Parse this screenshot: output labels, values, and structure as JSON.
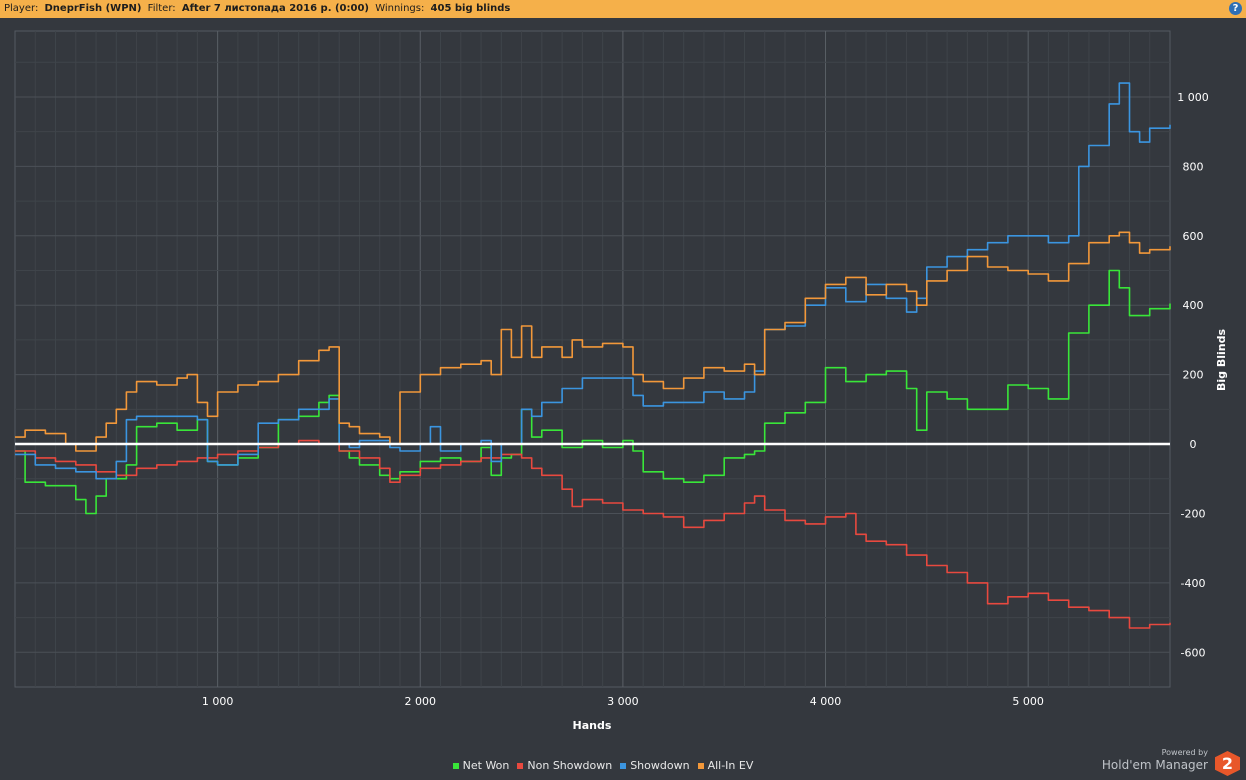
{
  "header": {
    "player_label": "Player:",
    "player_value": "DneprFish (WPN)",
    "filter_label": "Filter:",
    "filter_value": "After 7 листопада 2016 р. (0:00)",
    "winnings_label": "Winnings:",
    "winnings_value": "405 big blinds",
    "help_label": "?"
  },
  "footer": {
    "powered_by": "Powered by",
    "brand": "Hold'em Manager",
    "brand_badge": "2"
  },
  "chart_data": {
    "type": "line",
    "xlabel": "Hands",
    "ylabel": "Big Blinds",
    "xlim": [
      0,
      5700
    ],
    "ylim": [
      -700,
      1190
    ],
    "x_ticks": [
      1000,
      2000,
      3000,
      4000,
      5000
    ],
    "x_tick_labels": [
      "1 000",
      "2 000",
      "3 000",
      "4 000",
      "5 000"
    ],
    "y_ticks": [
      -600,
      -400,
      -200,
      0,
      200,
      400,
      600,
      800,
      1000
    ],
    "y_tick_labels": [
      "-600",
      "-400",
      "-200",
      "0",
      "200",
      "400",
      "600",
      "800",
      "1 000"
    ],
    "grid": true,
    "legend_position": "bottom",
    "colors": {
      "background": "#34383e",
      "grid": "#4b5057",
      "zero_line": "#ffffff",
      "Net Won": "#39e639",
      "Non Showdown": "#e8493f",
      "Showdown": "#3b95e0",
      "All-In EV": "#f2983a"
    },
    "series": [
      {
        "name": "Net Won",
        "x": [
          0,
          50,
          150,
          300,
          350,
          400,
          450,
          500,
          550,
          600,
          700,
          800,
          900,
          950,
          1000,
          1100,
          1200,
          1300,
          1400,
          1500,
          1550,
          1600,
          1650,
          1700,
          1800,
          1850,
          1900,
          2000,
          2100,
          2200,
          2300,
          2350,
          2400,
          2450,
          2500,
          2550,
          2600,
          2700,
          2800,
          2900,
          3000,
          3050,
          3100,
          3200,
          3300,
          3400,
          3500,
          3600,
          3650,
          3700,
          3800,
          3900,
          4000,
          4100,
          4200,
          4300,
          4400,
          4450,
          4500,
          4600,
          4700,
          4800,
          4900,
          5000,
          5100,
          5200,
          5300,
          5400,
          5450,
          5500,
          5600,
          5700
        ],
        "y": [
          -20,
          -110,
          -120,
          -160,
          -200,
          -150,
          -100,
          -100,
          -60,
          50,
          60,
          40,
          70,
          -50,
          -60,
          -40,
          -10,
          70,
          80,
          120,
          140,
          -20,
          -40,
          -60,
          -90,
          -100,
          -80,
          -50,
          -40,
          -50,
          -10,
          -90,
          -40,
          -30,
          100,
          20,
          40,
          -10,
          10,
          -10,
          10,
          -20,
          -80,
          -100,
          -110,
          -90,
          -40,
          -30,
          -20,
          60,
          90,
          120,
          220,
          180,
          200,
          210,
          160,
          40,
          150,
          130,
          100,
          100,
          170,
          160,
          130,
          320,
          400,
          500,
          450,
          370,
          390,
          405
        ]
      },
      {
        "name": "Non Showdown",
        "x": [
          0,
          100,
          200,
          300,
          400,
          500,
          600,
          700,
          800,
          900,
          1000,
          1100,
          1200,
          1300,
          1400,
          1500,
          1600,
          1700,
          1800,
          1850,
          1900,
          2000,
          2100,
          2200,
          2300,
          2400,
          2500,
          2550,
          2600,
          2700,
          2750,
          2800,
          2900,
          3000,
          3100,
          3200,
          3300,
          3400,
          3500,
          3600,
          3650,
          3700,
          3800,
          3900,
          4000,
          4100,
          4150,
          4200,
          4300,
          4400,
          4500,
          4600,
          4700,
          4800,
          4900,
          5000,
          5100,
          5200,
          5300,
          5400,
          5500,
          5600,
          5700
        ],
        "y": [
          -20,
          -40,
          -50,
          -60,
          -80,
          -90,
          -70,
          -60,
          -50,
          -40,
          -30,
          -20,
          -10,
          0,
          10,
          0,
          -20,
          -40,
          -70,
          -110,
          -90,
          -70,
          -60,
          -50,
          -40,
          -30,
          -40,
          -70,
          -90,
          -130,
          -180,
          -160,
          -170,
          -190,
          -200,
          -210,
          -240,
          -220,
          -200,
          -170,
          -150,
          -190,
          -220,
          -230,
          -210,
          -200,
          -260,
          -280,
          -290,
          -320,
          -350,
          -370,
          -400,
          -460,
          -440,
          -430,
          -450,
          -470,
          -480,
          -500,
          -530,
          -520,
          -515
        ]
      },
      {
        "name": "Showdown",
        "x": [
          0,
          100,
          200,
          300,
          400,
          500,
          550,
          600,
          700,
          800,
          900,
          950,
          1000,
          1100,
          1200,
          1300,
          1400,
          1500,
          1550,
          1600,
          1650,
          1700,
          1800,
          1850,
          1900,
          2000,
          2050,
          2100,
          2200,
          2300,
          2350,
          2400,
          2450,
          2500,
          2550,
          2600,
          2700,
          2800,
          3000,
          3050,
          3100,
          3200,
          3300,
          3400,
          3500,
          3600,
          3650,
          3700,
          3800,
          3900,
          4000,
          4100,
          4200,
          4300,
          4400,
          4450,
          4500,
          4600,
          4700,
          4800,
          4900,
          5000,
          5100,
          5200,
          5250,
          5300,
          5400,
          5450,
          5500,
          5550,
          5600,
          5700
        ],
        "y": [
          -30,
          -60,
          -70,
          -80,
          -100,
          -50,
          70,
          80,
          80,
          80,
          70,
          -50,
          -60,
          -30,
          60,
          70,
          100,
          100,
          130,
          0,
          -10,
          10,
          10,
          -10,
          -20,
          0,
          50,
          -20,
          0,
          10,
          -50,
          0,
          0,
          100,
          80,
          120,
          160,
          190,
          190,
          140,
          110,
          120,
          120,
          150,
          130,
          150,
          210,
          330,
          340,
          400,
          450,
          410,
          460,
          420,
          380,
          420,
          510,
          540,
          560,
          580,
          600,
          600,
          580,
          600,
          800,
          860,
          980,
          1040,
          900,
          870,
          910,
          920
        ]
      },
      {
        "name": "All-In EV",
        "x": [
          0,
          50,
          150,
          250,
          300,
          400,
          450,
          500,
          550,
          600,
          700,
          800,
          850,
          900,
          950,
          1000,
          1100,
          1200,
          1300,
          1400,
          1500,
          1550,
          1600,
          1650,
          1700,
          1800,
          1850,
          1900,
          2000,
          2100,
          2200,
          2300,
          2350,
          2400,
          2450,
          2500,
          2550,
          2600,
          2700,
          2750,
          2800,
          2900,
          3000,
          3050,
          3100,
          3200,
          3300,
          3400,
          3500,
          3600,
          3650,
          3700,
          3800,
          3900,
          4000,
          4100,
          4200,
          4300,
          4400,
          4450,
          4500,
          4600,
          4700,
          4800,
          4900,
          5000,
          5100,
          5200,
          5300,
          5400,
          5450,
          5500,
          5550,
          5600,
          5700
        ],
        "y": [
          20,
          40,
          30,
          0,
          -20,
          20,
          60,
          100,
          150,
          180,
          170,
          190,
          200,
          120,
          80,
          150,
          170,
          180,
          200,
          240,
          270,
          280,
          60,
          50,
          30,
          20,
          0,
          150,
          200,
          220,
          230,
          240,
          200,
          330,
          250,
          340,
          250,
          280,
          250,
          300,
          280,
          290,
          280,
          200,
          180,
          160,
          190,
          220,
          210,
          230,
          200,
          330,
          350,
          420,
          460,
          480,
          430,
          460,
          440,
          400,
          470,
          500,
          540,
          510,
          500,
          490,
          470,
          520,
          580,
          600,
          610,
          580,
          550,
          560,
          570
        ]
      }
    ]
  }
}
